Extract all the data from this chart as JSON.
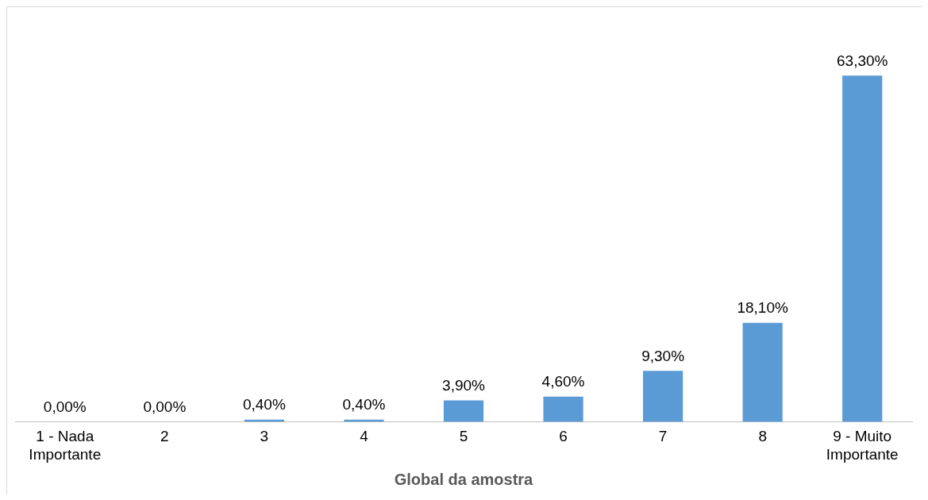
{
  "chart_data": {
    "type": "bar",
    "xlabel": "Global da amostra",
    "categories": [
      "1 - Nada Importante",
      "2",
      "3",
      "4",
      "5",
      "6",
      "7",
      "8",
      "9 - Muito Importante"
    ],
    "values": [
      0,
      0,
      0.4,
      0.4,
      3.9,
      4.6,
      9.3,
      18.1,
      63.3
    ],
    "value_labels": [
      "0,00%",
      "0,00%",
      "0,40%",
      "0,40%",
      "3,90%",
      "4,60%",
      "9,30%",
      "18,10%",
      "63,30%"
    ],
    "color": "#5b9bd5",
    "grid": false,
    "legend": false
  }
}
